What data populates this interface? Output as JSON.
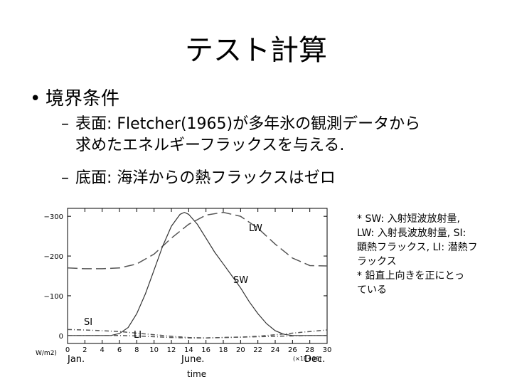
{
  "slide": {
    "title": "テスト計算",
    "bullet_main": "境界条件",
    "bullet_sub1_line1": "表面: Fletcher(1965)が多年氷の観測データから",
    "bullet_sub1_line2": "求めたエネルギーフラックスを与える.",
    "bullet_sub2": "底面: 海洋からの熱フラックスはゼロ",
    "bullet_symbol": "•",
    "dash_symbol": "–"
  },
  "notes": {
    "line1": "* SW: 入射短波放射量,",
    "line2": "LW: 入射長波放射量, SI:",
    "line3": "顕熱フラックス, LI: 潜熱フ",
    "line4": "ラックス",
    "line5": "* 鉛直上向きを正にとっ",
    "line6": "ている"
  },
  "chart_data": {
    "type": "line",
    "xlabel": "time",
    "ylabel": "W/m2)",
    "x_exponent_label": "(×1E+06)",
    "xlim": [
      0,
      30
    ],
    "ylim": [
      -320,
      20
    ],
    "x_ticks": [
      0,
      2,
      4,
      6,
      8,
      10,
      12,
      14,
      16,
      18,
      20,
      22,
      24,
      26,
      28,
      30
    ],
    "y_ticks": [
      -300,
      -200,
      -100,
      0
    ],
    "month_labels": {
      "jan": "Jan.",
      "june": "June.",
      "dec": "Dec."
    },
    "series": [
      {
        "name": "LW",
        "style": "long-dash",
        "x": [
          0,
          2,
          4,
          6,
          8,
          10,
          12,
          14,
          16,
          18,
          20,
          22,
          24,
          26,
          28,
          30
        ],
        "y": [
          -170,
          -168,
          -168,
          -170,
          -180,
          -205,
          -245,
          -280,
          -303,
          -310,
          -300,
          -270,
          -230,
          -195,
          -176,
          -175
        ]
      },
      {
        "name": "SW",
        "style": "solid",
        "x": [
          0,
          5,
          6,
          7,
          8,
          9,
          10,
          11,
          12,
          13,
          13.5,
          14,
          15,
          16,
          17,
          18,
          19,
          20,
          21,
          22,
          23,
          24,
          25,
          26,
          30
        ],
        "y": [
          0,
          0,
          -5,
          -20,
          -55,
          -105,
          -165,
          -225,
          -275,
          -305,
          -310,
          -305,
          -280,
          -245,
          -210,
          -180,
          -150,
          -120,
          -85,
          -55,
          -30,
          -12,
          -3,
          0,
          0
        ]
      },
      {
        "name": "SI",
        "style": "dash-dot",
        "x": [
          0,
          2,
          4,
          6,
          8,
          10,
          12,
          14,
          16,
          18,
          20,
          22,
          24,
          26,
          28,
          30
        ],
        "y": [
          -15,
          -14,
          -12,
          -10,
          -6,
          -2,
          2,
          5,
          6,
          5,
          4,
          2,
          -2,
          -6,
          -10,
          -14
        ]
      },
      {
        "name": "LI",
        "style": "dash-dot",
        "x": [
          0,
          2,
          4,
          6,
          8,
          10,
          12,
          14,
          16,
          18,
          20,
          22,
          24,
          26,
          28,
          30
        ],
        "y": [
          0,
          0,
          0,
          0,
          1,
          3,
          5,
          6,
          6,
          5,
          4,
          3,
          2,
          1,
          0,
          0
        ]
      }
    ]
  },
  "colors": {
    "curve": "#555555",
    "axis": "#000000",
    "solid": "#333333"
  }
}
